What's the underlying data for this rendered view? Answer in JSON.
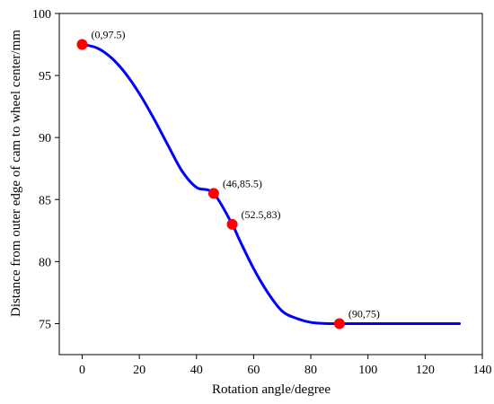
{
  "chart_data": {
    "type": "line",
    "xlabel": "Rotation angle/degree",
    "ylabel": "Distance from outer edge of cam to wheel center/mm",
    "xlim": [
      -8,
      140
    ],
    "ylim": [
      72.5,
      100
    ],
    "xticks": [
      0,
      20,
      40,
      60,
      80,
      100,
      120,
      140
    ],
    "yticks": [
      75,
      80,
      85,
      90,
      95,
      100
    ],
    "xtick_labels": [
      "0",
      "20",
      "40",
      "60",
      "80",
      "100",
      "120",
      "140"
    ],
    "ytick_labels": [
      "75",
      "80",
      "85",
      "90",
      "95",
      "100"
    ],
    "grid": false,
    "line_color": "#0000ff",
    "marker_color": "#ff0000",
    "series": [
      {
        "x": [
          0,
          5,
          10,
          15,
          20,
          25,
          30,
          35,
          40,
          46,
          52.5,
          55,
          60,
          65,
          70,
          75,
          80,
          85,
          90,
          100,
          110,
          120,
          132
        ],
        "values": [
          97.5,
          97.24,
          96.47,
          95.22,
          93.55,
          91.56,
          89.39,
          87.28,
          85.98,
          85.5,
          83.0,
          81.77,
          79.43,
          77.48,
          76.0,
          75.42,
          75.1,
          75.01,
          75.0,
          75.0,
          75.0,
          75.0,
          75.0
        ]
      }
    ],
    "annotations": [
      {
        "x": 0,
        "y": 97.5,
        "text": "(0,97.5)"
      },
      {
        "x": 46,
        "y": 85.5,
        "text": "(46,85.5)"
      },
      {
        "x": 52.5,
        "y": 83,
        "text": "(52.5,83)"
      },
      {
        "x": 90,
        "y": 75,
        "text": "(90,75)"
      }
    ]
  }
}
